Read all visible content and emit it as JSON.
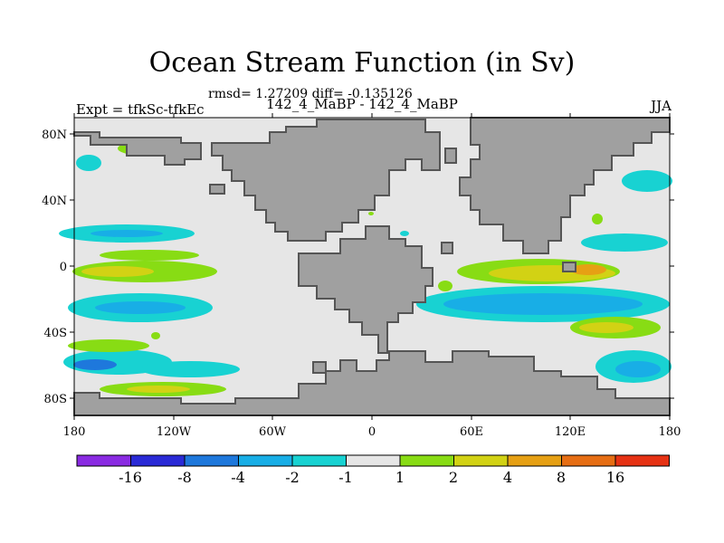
{
  "title": "Ocean Stream Function (in Sv)",
  "subtitle": "rmsd= 1.27209 diff= -0.135126",
  "left_string": "Expt = tfkSc-tfkEc",
  "center_string": "142_4_MaBP - 142_4_MaBP",
  "right_string": "JJA",
  "map": {
    "lon_ticks": [
      "180",
      "120W",
      "60W",
      "0",
      "60E",
      "120E",
      "180"
    ],
    "lat_ticks": [
      "80N",
      "40N",
      "0",
      "40S",
      "80S"
    ]
  },
  "colorbar": {
    "colors": [
      "#8a2be2",
      "#2a2ad6",
      "#1e78dc",
      "#18aee6",
      "#18d2d2",
      "#e6e6e6",
      "#88dc14",
      "#d2d214",
      "#e6a014",
      "#e66e14",
      "#e63214"
    ],
    "labels": [
      "-16",
      "-8",
      "-4",
      "-2",
      "-1",
      "1",
      "2",
      "4",
      "8",
      "16"
    ]
  }
}
